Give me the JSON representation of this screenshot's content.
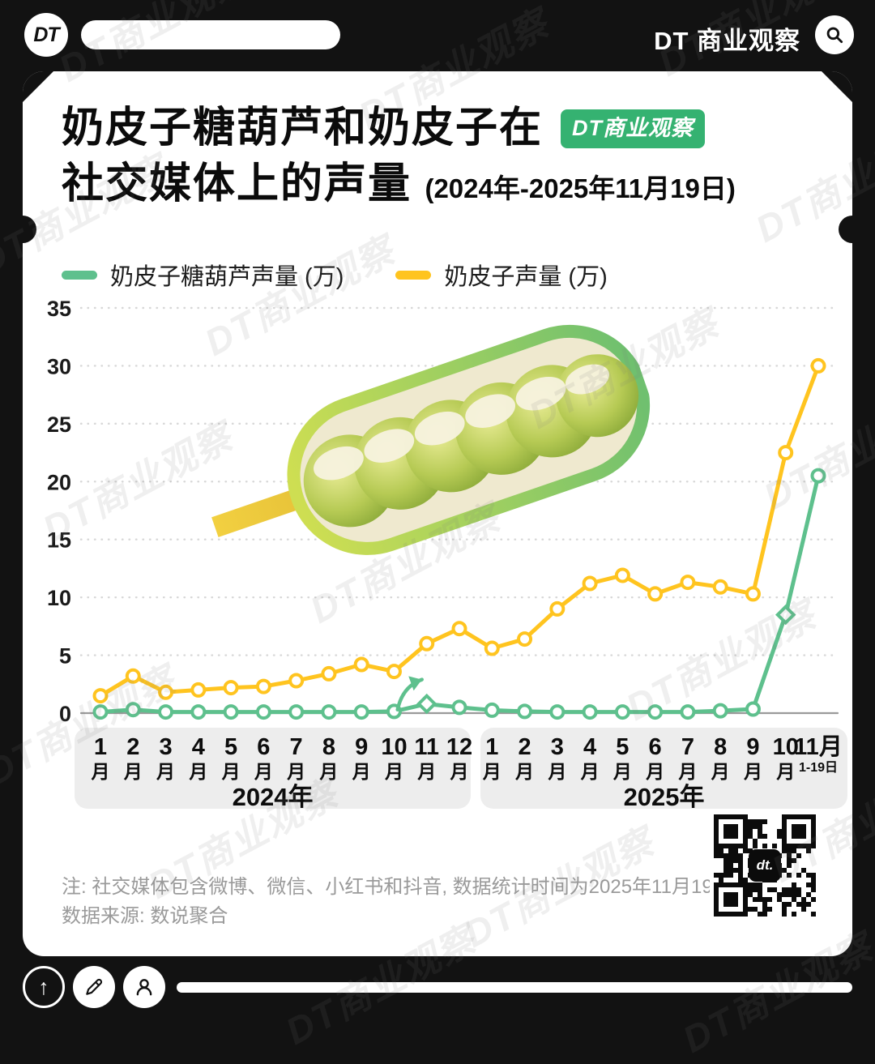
{
  "header": {
    "logo_text": "DT",
    "brand": "DT 商业观察"
  },
  "title": {
    "line1": "奶皮子糖葫芦和奶皮子在",
    "badge": "DT商业观察",
    "line2": "社交媒体上的声量",
    "line2_suffix": "(2024年-2025年11月19日)"
  },
  "legend": [
    {
      "label": "奶皮子糖葫芦声量 (万)",
      "color": "#5ec08d"
    },
    {
      "label": "奶皮子声量 (万)",
      "color": "#ffc41f"
    }
  ],
  "chart_data": {
    "type": "line",
    "title": "奶皮子糖葫芦和奶皮子在社交媒体上的声量 (2024年-2025年11月19日)",
    "unit": "万",
    "x_labels": [
      "2024-1",
      "2024-2",
      "2024-3",
      "2024-4",
      "2024-5",
      "2024-6",
      "2024-7",
      "2024-8",
      "2024-9",
      "2024-10",
      "2024-11",
      "2024-12",
      "2025-1",
      "2025-2",
      "2025-3",
      "2025-4",
      "2025-5",
      "2025-6",
      "2025-7",
      "2025-8",
      "2025-9",
      "2025-10",
      "2025-11(1-19)"
    ],
    "series": [
      {
        "name": "奶皮子糖葫芦声量 (万)",
        "color": "#5ec08d",
        "values": [
          0.1,
          0.3,
          0.1,
          0.1,
          0.1,
          0.1,
          0.1,
          0.1,
          0.1,
          0.15,
          0.8,
          0.5,
          0.25,
          0.15,
          0.1,
          0.1,
          0.1,
          0.1,
          0.1,
          0.2,
          0.35,
          8.5,
          20.5
        ],
        "diamond_markers": [
          10,
          21
        ]
      },
      {
        "name": "奶皮子声量 (万)",
        "color": "#ffc41f",
        "values": [
          1.5,
          3.2,
          1.8,
          2.0,
          2.2,
          2.3,
          2.8,
          3.4,
          4.2,
          3.6,
          6.0,
          7.3,
          5.6,
          6.4,
          9.0,
          11.2,
          11.9,
          10.3,
          11.3,
          10.9,
          10.3,
          22.5,
          30.0
        ]
      }
    ],
    "ylim": [
      0,
      35
    ],
    "yticks": [
      0,
      5,
      10,
      15,
      20,
      25,
      30,
      35
    ],
    "grid": "dotted-horizontal",
    "legend_position": "top-left"
  },
  "x_axis": {
    "groups": [
      {
        "year": "2024年",
        "months": [
          {
            "num": "1",
            "unit": "月"
          },
          {
            "num": "2",
            "unit": "月"
          },
          {
            "num": "3",
            "unit": "月"
          },
          {
            "num": "4",
            "unit": "月"
          },
          {
            "num": "5",
            "unit": "月"
          },
          {
            "num": "6",
            "unit": "月"
          },
          {
            "num": "7",
            "unit": "月"
          },
          {
            "num": "8",
            "unit": "月"
          },
          {
            "num": "9",
            "unit": "月"
          },
          {
            "num": "10",
            "unit": "月"
          },
          {
            "num": "11",
            "unit": "月"
          },
          {
            "num": "12",
            "unit": "月"
          }
        ]
      },
      {
        "year": "2025年",
        "months": [
          {
            "num": "1",
            "unit": "月"
          },
          {
            "num": "2",
            "unit": "月"
          },
          {
            "num": "3",
            "unit": "月"
          },
          {
            "num": "4",
            "unit": "月"
          },
          {
            "num": "5",
            "unit": "月"
          },
          {
            "num": "6",
            "unit": "月"
          },
          {
            "num": "7",
            "unit": "月"
          },
          {
            "num": "8",
            "unit": "月"
          },
          {
            "num": "9",
            "unit": "月"
          },
          {
            "num": "10",
            "unit": "月"
          },
          {
            "num": "11月",
            "unit": "1-19日",
            "small": true
          }
        ]
      }
    ]
  },
  "footer": {
    "note": "注: 社交媒体包含微博、微信、小红书和抖音, 数据统计时间为2025年11月19日",
    "source": "数据来源: 数说聚合",
    "qr_label": "dt."
  },
  "icons": {
    "up_arrow": "↑"
  },
  "watermark": {
    "text": "DT商业观察"
  }
}
